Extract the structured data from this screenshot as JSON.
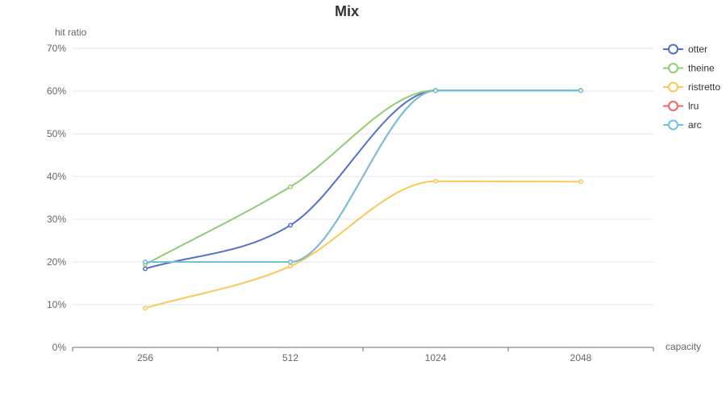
{
  "chart_data": {
    "type": "line",
    "title": "Mix",
    "xlabel": "capacity",
    "ylabel": "hit ratio",
    "categories": [
      "256",
      "512",
      "1024",
      "2048"
    ],
    "ylim": [
      0,
      70
    ],
    "ytick_step": 10,
    "y_tick_labels": [
      "0%",
      "10%",
      "20%",
      "30%",
      "40%",
      "50%",
      "60%",
      "70%"
    ],
    "grid": true,
    "smooth": true,
    "legend_position": "right",
    "series": [
      {
        "name": "otter",
        "color": "#5470c6",
        "values": [
          18.4,
          28.6,
          60.1,
          60.1
        ]
      },
      {
        "name": "theine",
        "color": "#91cc75",
        "values": [
          19.4,
          37.6,
          60.2,
          60.2
        ]
      },
      {
        "name": "ristretto",
        "color": "#fac858",
        "values": [
          9.2,
          19.0,
          38.9,
          38.8
        ]
      },
      {
        "name": "lru",
        "color": "#ee6666",
        "values": [
          20.0,
          20.0,
          60.1,
          60.1
        ]
      },
      {
        "name": "arc",
        "color": "#73c0de",
        "values": [
          20.0,
          20.0,
          60.1,
          60.1
        ]
      }
    ]
  }
}
